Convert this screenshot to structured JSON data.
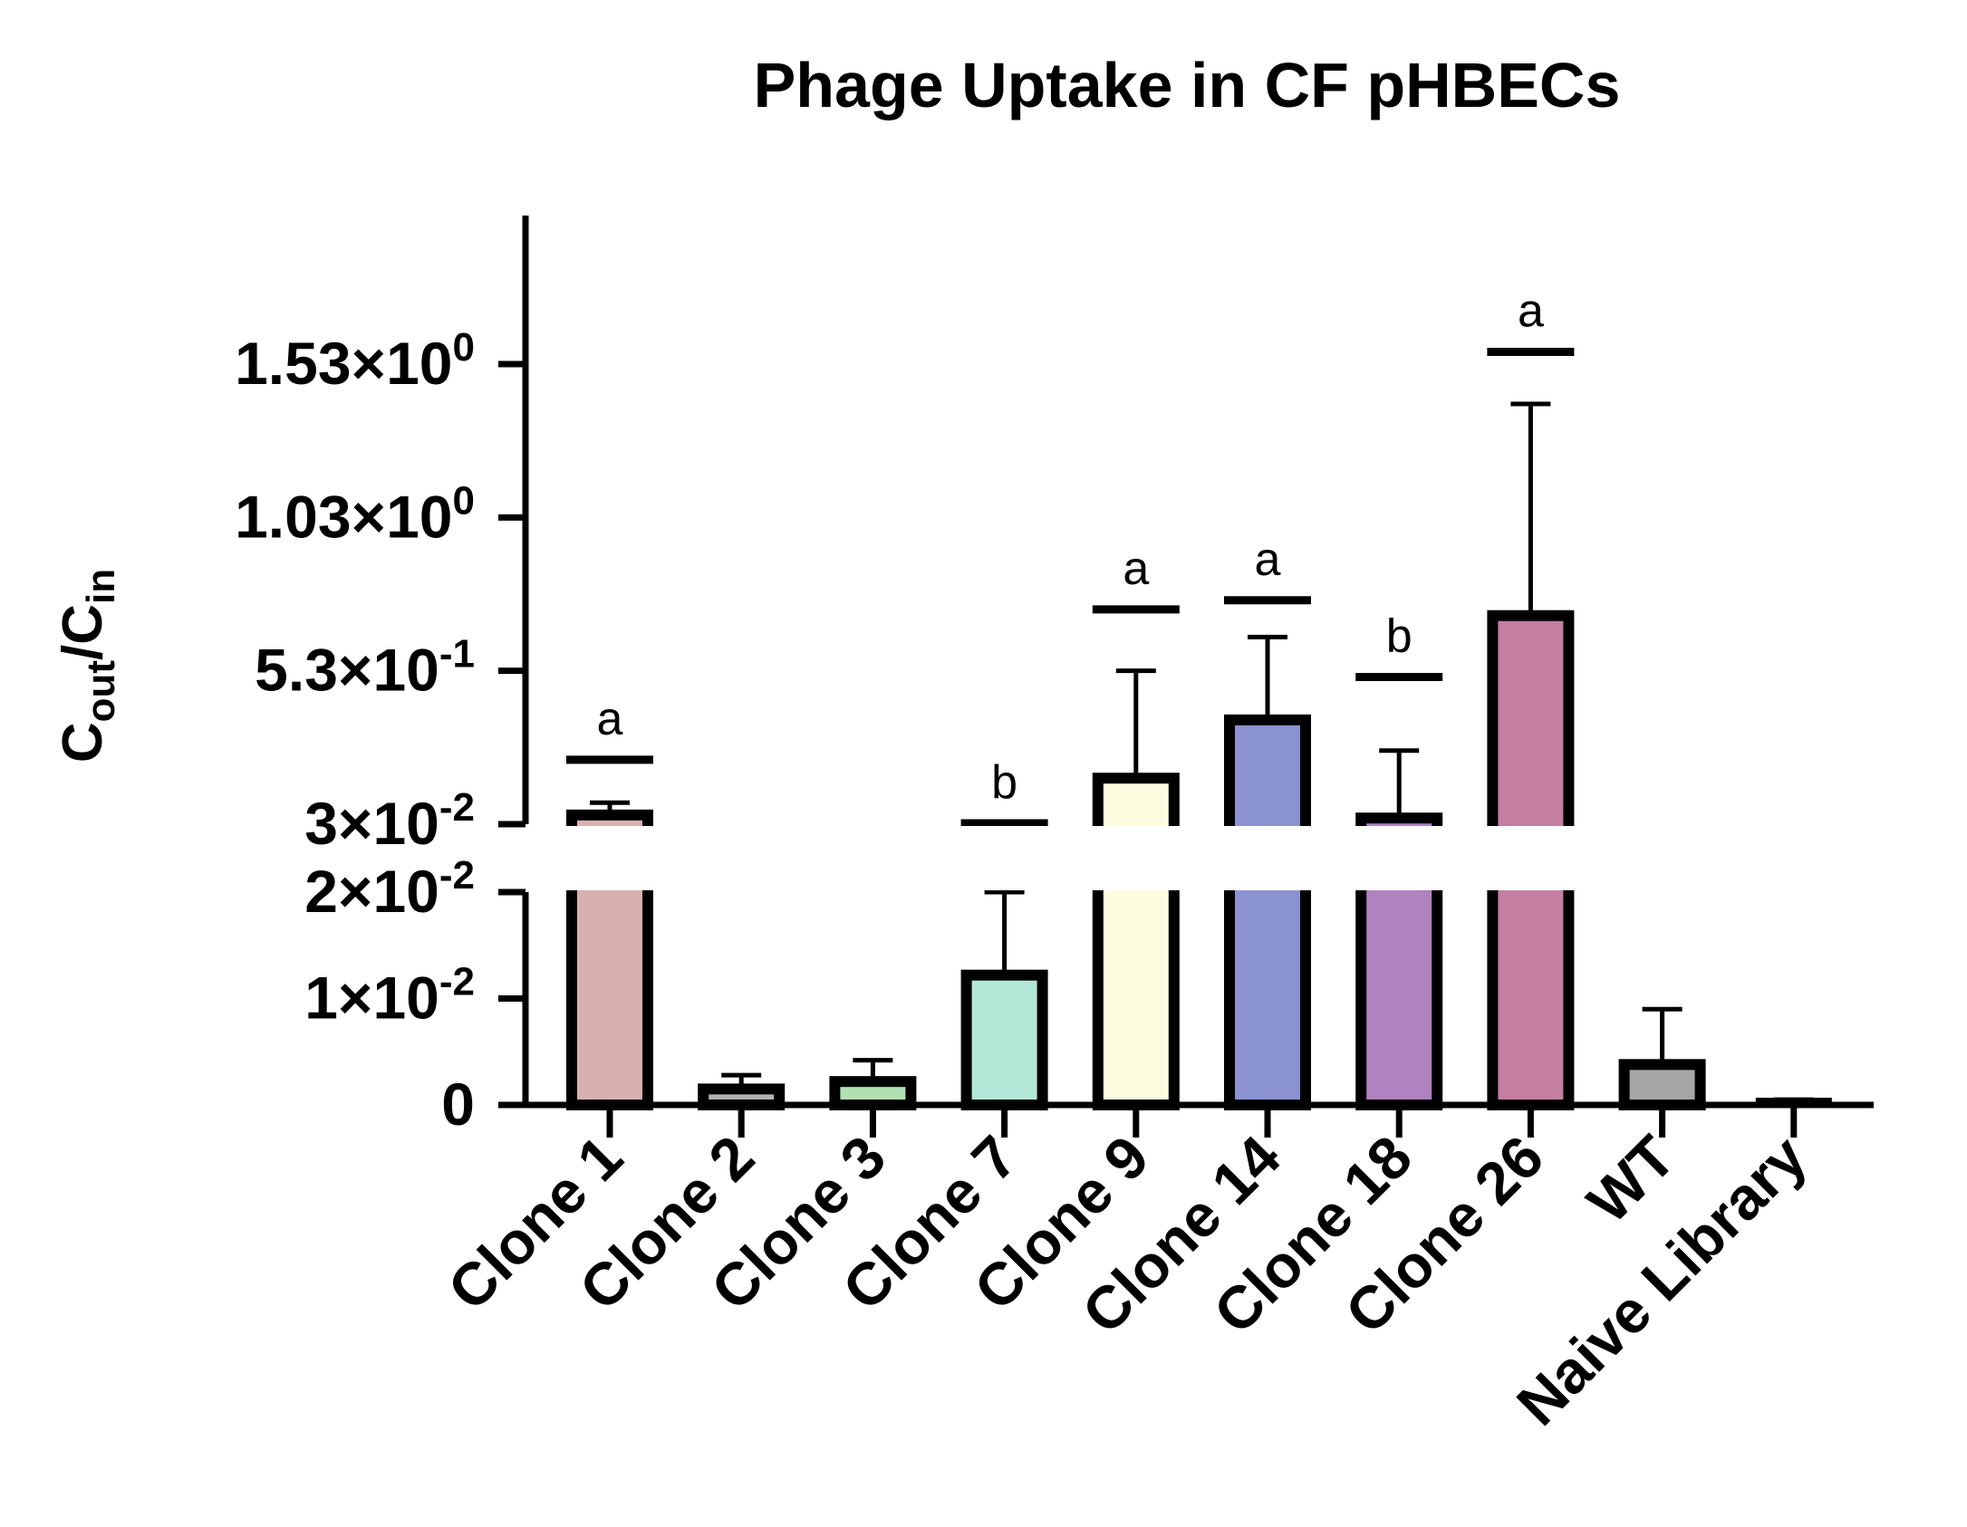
{
  "chart_data": {
    "type": "bar",
    "title": "Phage Uptake in CF pHBECs",
    "ylabel": {
      "base": "C",
      "sub_num": "out",
      "sep": "/",
      "base2": "C",
      "sub_den": "in"
    },
    "y_axis_broken": true,
    "grid": false,
    "categories": [
      "Clone 1",
      "Clone 2",
      "Clone 3",
      "Clone 7",
      "Clone 9",
      "Clone 14",
      "Clone 18",
      "Clone 26",
      "WT",
      "Naive Library"
    ],
    "values": [
      0.06,
      0.0015,
      0.0022,
      0.0122,
      0.18,
      0.37,
      0.05,
      0.71,
      0.0038,
      0.0
    ],
    "error_upper": [
      0.1,
      0.0028,
      0.0042,
      0.02,
      0.53,
      0.64,
      0.27,
      1.4,
      0.009,
      0.0005
    ],
    "significance": [
      "a",
      "",
      "",
      "b",
      "a",
      "a",
      "b",
      "a",
      "",
      ""
    ],
    "sig_bar_levels": [
      0.24,
      null,
      null,
      0.033,
      0.73,
      0.76,
      0.51,
      1.57,
      null,
      null
    ],
    "colors": [
      "#d8b0b0",
      "#b3b3b3",
      "#b3e0b3",
      "#b3e8d8",
      "#fdfbe0",
      "#8b92d0",
      "#b082c0",
      "#c47fa0",
      "#a6a6a6",
      "#9a9a9a"
    ],
    "y_ticks_lower": [
      {
        "value": 0,
        "mantissa": "0",
        "exp": ""
      },
      {
        "value": 0.01,
        "mantissa": "1×10",
        "exp": "-2"
      },
      {
        "value": 0.02,
        "mantissa": "2×10",
        "exp": "-2"
      }
    ],
    "y_ticks_upper": [
      {
        "value": 0.03,
        "mantissa": "3×10",
        "exp": "-2"
      },
      {
        "value": 0.53,
        "mantissa": "5.3×10",
        "exp": "-1"
      },
      {
        "value": 1.03,
        "mantissa": "1.03×10",
        "exp": "0"
      },
      {
        "value": 1.53,
        "mantissa": "1.53×10",
        "exp": "0"
      }
    ],
    "ylim_lower": [
      0,
      0.02
    ],
    "ylim_upper": [
      0.03,
      2.0
    ]
  }
}
